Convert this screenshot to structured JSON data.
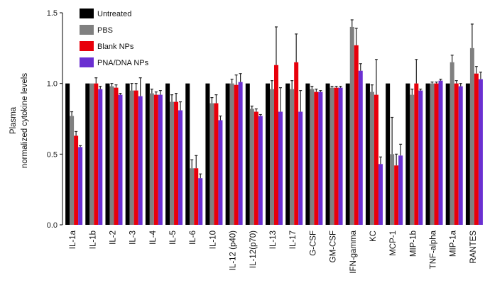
{
  "chart_data": {
    "type": "bar",
    "title": "",
    "ylabel_lines": [
      "Plasma",
      "normalized cytokine levels"
    ],
    "xlabel": "",
    "ylim": [
      0,
      1.5
    ],
    "yticks": [
      "0.0",
      "0.5",
      "1.0",
      "1.5"
    ],
    "ytick_values": [
      0,
      0.5,
      1.0,
      1.5
    ],
    "legend_position": "top-left",
    "categories": [
      "IL-1a",
      "IL-1b",
      "IL-2",
      "IL-3",
      "IL-4",
      "IL-5",
      "IL-6",
      "IL-10",
      "IL-12 (p40)",
      "IL-12(p70)",
      "IL-13",
      "IL-17",
      "G-CSF",
      "GM-CSF",
      "IFN-gamma",
      "KC",
      "MCP-1",
      "MIP-1b",
      "TNF-alpha",
      "MIP-1a",
      "RANTES"
    ],
    "series": [
      {
        "name": "Untreated",
        "color": "#000000",
        "values": [
          1.0,
          1.0,
          1.0,
          1.0,
          1.0,
          1.0,
          1.0,
          1.0,
          1.0,
          1.0,
          1.0,
          1.0,
          1.0,
          1.0,
          1.0,
          1.0,
          1.0,
          1.0,
          1.0,
          1.0,
          1.0
        ],
        "errors": [
          0,
          0,
          0,
          0,
          0,
          0,
          0,
          0,
          0,
          0,
          0,
          0,
          0,
          0,
          0,
          0,
          0,
          0,
          0,
          0,
          0
        ]
      },
      {
        "name": "PBS",
        "color": "#808080",
        "values": [
          0.77,
          1.0,
          0.98,
          0.95,
          0.93,
          0.87,
          0.4,
          0.86,
          1.0,
          0.82,
          0.96,
          0.96,
          0.96,
          0.97,
          1.4,
          0.94,
          0.5,
          0.92,
          1.0,
          1.15,
          1.25
        ],
        "errors": [
          0.03,
          0.0,
          0.02,
          0.05,
          0.03,
          0.05,
          0.06,
          0.04,
          0.03,
          0.02,
          0.06,
          0.06,
          0.02,
          0.01,
          0.05,
          0.05,
          0.26,
          0.04,
          0.01,
          0.05,
          0.17
        ]
      },
      {
        "name": "Blank NPs",
        "color": "#e8000b",
        "values": [
          0.63,
          1.0,
          0.97,
          0.95,
          0.92,
          0.87,
          0.4,
          0.86,
          0.99,
          0.8,
          1.13,
          1.15,
          0.94,
          0.97,
          1.27,
          0.92,
          0.42,
          1.0,
          1.0,
          1.0,
          1.07
        ],
        "errors": [
          0.03,
          0.04,
          0.02,
          0.05,
          0.02,
          0.06,
          0.09,
          0.06,
          0.07,
          0.02,
          0.27,
          0.2,
          0.02,
          0.01,
          0.12,
          0.25,
          0.08,
          0.17,
          0.01,
          0.02,
          0.05
        ]
      },
      {
        "name": "PNA/DNA NPs",
        "color": "#6a2fd1",
        "values": [
          0.55,
          0.96,
          0.92,
          0.91,
          0.92,
          0.81,
          0.33,
          0.74,
          1.01,
          0.77,
          0.8,
          0.8,
          0.94,
          0.97,
          1.09,
          0.43,
          0.49,
          0.95,
          1.02,
          0.98,
          1.03
        ],
        "errors": [
          0.01,
          0.02,
          0.01,
          0.13,
          0.03,
          0.06,
          0.03,
          0.03,
          0.06,
          0.01,
          0.17,
          0.15,
          0.01,
          0.01,
          0.05,
          0.05,
          0.08,
          0.01,
          0.01,
          0.02,
          0.05
        ]
      }
    ]
  }
}
